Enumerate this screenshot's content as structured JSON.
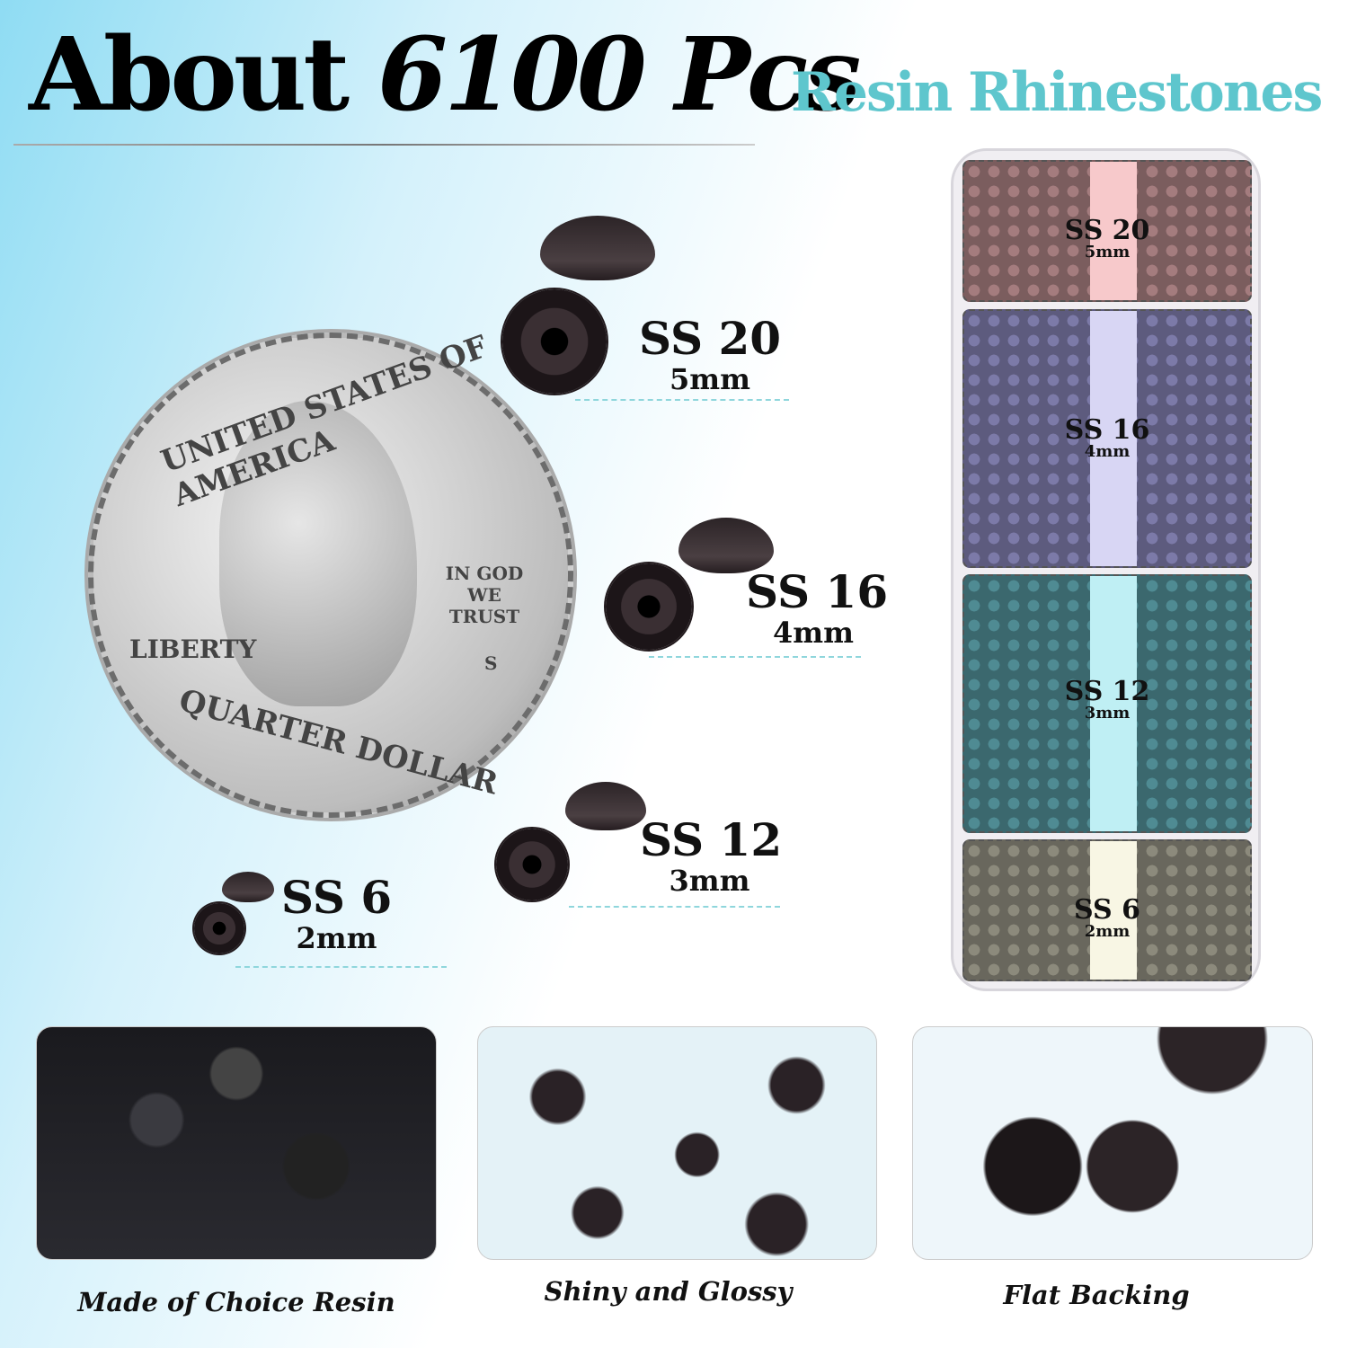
{
  "headline": {
    "prefix": "About",
    "count": "6100 Pcs",
    "subtitle": "Resin Rhinestones"
  },
  "coin": {
    "top_text": "UNITED STATES OF AMERICA",
    "motto": "IN GOD WE TRUST",
    "liberty": "LIBERTY",
    "mint": "S",
    "bottom_text": "QUARTER DOLLAR"
  },
  "sizes": [
    {
      "size": "SS 20",
      "mm": "5mm"
    },
    {
      "size": "SS 16",
      "mm": "4mm"
    },
    {
      "size": "SS 12",
      "mm": "3mm"
    },
    {
      "size": "SS 6",
      "mm": "2mm"
    }
  ],
  "case": [
    {
      "size": "SS 20",
      "mm": "5mm",
      "color": "#a47c7e",
      "strip": "#f7c9cb"
    },
    {
      "size": "SS 16",
      "mm": "4mm",
      "color": "#7c7aa8",
      "strip": "#d8d6f4"
    },
    {
      "size": "SS 12",
      "mm": "3mm",
      "color": "#4f8b93",
      "strip": "#bfeff4"
    },
    {
      "size": "SS 6",
      "mm": "2mm",
      "color": "#8c8a7c",
      "strip": "#f8f6e4"
    }
  ],
  "features": [
    {
      "caption": "Made of Choice Resin"
    },
    {
      "caption": "Shiny and Glossy"
    },
    {
      "caption": "Flat Backing"
    }
  ],
  "colors": {
    "accent": "#5ec6cd",
    "stone": "#2a2225"
  }
}
